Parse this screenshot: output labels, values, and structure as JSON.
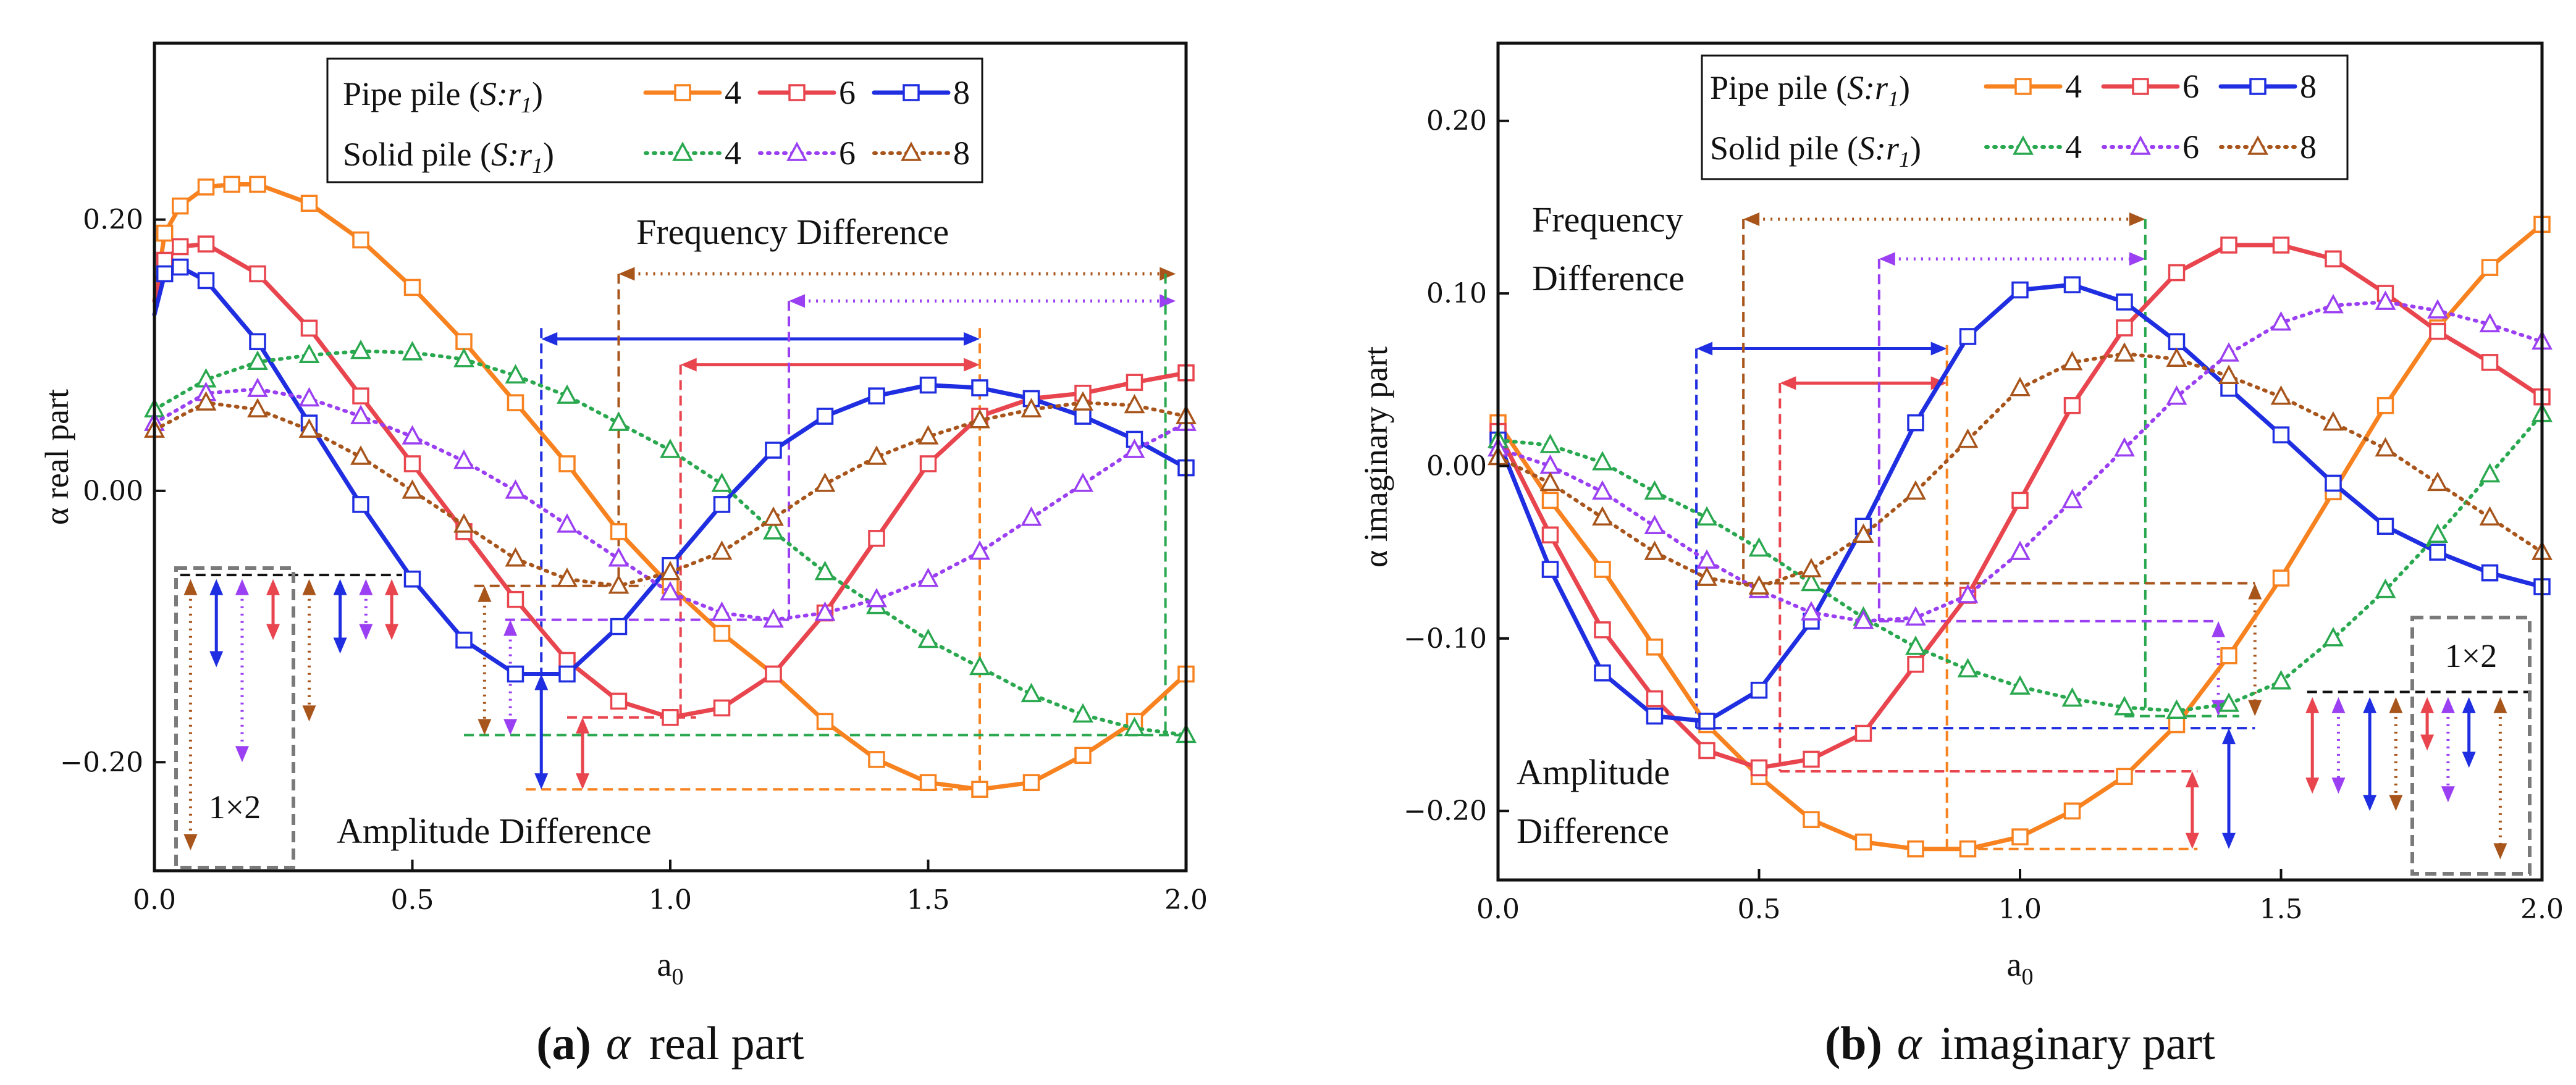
{
  "colors": {
    "pipe4": "#f7821f",
    "pipe6": "#e8454e",
    "pipe8": "#1f2ee0",
    "solid4": "#2aa84f",
    "solid6": "#9b3ff2",
    "solid8": "#a8551c",
    "inset_box": "#7a7a7a"
  },
  "chart_data": [
    {
      "type": "line",
      "panel": "a",
      "caption_letter": "(a)",
      "caption_symbol": "α",
      "caption_text": "real part",
      "xlabel": "a",
      "xlabel_sub": "0",
      "ylabel": "α real part",
      "xlim": [
        0,
        2.0
      ],
      "ylim": [
        -0.28,
        0.33
      ],
      "xticks": [
        0.0,
        0.5,
        1.0,
        1.5,
        2.0
      ],
      "xtick_labels": [
        "0.0",
        "0.5",
        "1.0",
        "1.5",
        "2.0"
      ],
      "yticks": [
        -0.2,
        0.0,
        0.2
      ],
      "ytick_labels": [
        "−0.20",
        "0.00",
        "0.20"
      ],
      "legend": {
        "row1_label": "Pipe  pile (",
        "row2_label": "Solid pile (",
        "ratio_symbol": "S:r",
        "ratio_sub": "1",
        "close": ")",
        "entries": [
          "4",
          "6",
          "8"
        ]
      },
      "annotations": {
        "frequency": "Frequency Difference",
        "amplitude": "Amplitude Difference",
        "inset": "1×2"
      },
      "series": [
        {
          "name": "Pipe pile 4",
          "key": "pipe4",
          "style": "solid",
          "marker": "square",
          "x": [
            0,
            0.02,
            0.05,
            0.1,
            0.15,
            0.2,
            0.3,
            0.4,
            0.5,
            0.6,
            0.7,
            0.8,
            0.9,
            1.0,
            1.1,
            1.2,
            1.3,
            1.4,
            1.5,
            1.6,
            1.7,
            1.8,
            1.9,
            2.0
          ],
          "y": [
            0.14,
            0.19,
            0.21,
            0.224,
            0.226,
            0.226,
            0.212,
            0.185,
            0.15,
            0.11,
            0.065,
            0.02,
            -0.03,
            -0.07,
            -0.105,
            -0.135,
            -0.17,
            -0.198,
            -0.215,
            -0.22,
            -0.215,
            -0.195,
            -0.17,
            -0.135
          ]
        },
        {
          "name": "Pipe pile 6",
          "key": "pipe6",
          "style": "solid",
          "marker": "square",
          "x": [
            0,
            0.02,
            0.05,
            0.1,
            0.2,
            0.3,
            0.4,
            0.5,
            0.6,
            0.7,
            0.8,
            0.9,
            1.0,
            1.1,
            1.2,
            1.3,
            1.4,
            1.5,
            1.6,
            1.7,
            1.8,
            1.9,
            2.0
          ],
          "y": [
            0.14,
            0.17,
            0.18,
            0.182,
            0.16,
            0.12,
            0.07,
            0.02,
            -0.03,
            -0.08,
            -0.125,
            -0.155,
            -0.167,
            -0.16,
            -0.135,
            -0.09,
            -0.035,
            0.02,
            0.055,
            0.068,
            0.072,
            0.08,
            0.087
          ]
        },
        {
          "name": "Pipe pile 8",
          "key": "pipe8",
          "style": "solid",
          "marker": "square",
          "x": [
            0,
            0.02,
            0.05,
            0.1,
            0.2,
            0.3,
            0.4,
            0.5,
            0.6,
            0.7,
            0.8,
            0.9,
            1.0,
            1.1,
            1.2,
            1.3,
            1.4,
            1.5,
            1.6,
            1.7,
            1.8,
            1.9,
            2.0
          ],
          "y": [
            0.13,
            0.16,
            0.165,
            0.155,
            0.11,
            0.05,
            -0.01,
            -0.065,
            -0.11,
            -0.135,
            -0.135,
            -0.1,
            -0.055,
            -0.01,
            0.03,
            0.055,
            0.07,
            0.078,
            0.076,
            0.068,
            0.055,
            0.038,
            0.017
          ]
        },
        {
          "name": "Solid pile 4",
          "key": "solid4",
          "style": "dotted",
          "marker": "triangle",
          "x": [
            0,
            0.1,
            0.2,
            0.3,
            0.4,
            0.5,
            0.6,
            0.7,
            0.8,
            0.9,
            1.0,
            1.1,
            1.2,
            1.3,
            1.4,
            1.5,
            1.6,
            1.7,
            1.8,
            1.9,
            2.0
          ],
          "y": [
            0.06,
            0.082,
            0.095,
            0.1,
            0.103,
            0.102,
            0.097,
            0.085,
            0.07,
            0.05,
            0.03,
            0.005,
            -0.03,
            -0.06,
            -0.085,
            -0.11,
            -0.13,
            -0.15,
            -0.165,
            -0.175,
            -0.18
          ]
        },
        {
          "name": "Solid pile 6",
          "key": "solid6",
          "style": "dotted",
          "marker": "triangle",
          "x": [
            0,
            0.1,
            0.2,
            0.3,
            0.4,
            0.5,
            0.6,
            0.7,
            0.8,
            0.9,
            1.0,
            1.1,
            1.2,
            1.3,
            1.4,
            1.5,
            1.6,
            1.7,
            1.8,
            1.9,
            2.0
          ],
          "y": [
            0.05,
            0.072,
            0.075,
            0.068,
            0.055,
            0.04,
            0.022,
            0.0,
            -0.025,
            -0.05,
            -0.075,
            -0.09,
            -0.095,
            -0.09,
            -0.08,
            -0.065,
            -0.045,
            -0.02,
            0.005,
            0.03,
            0.05
          ]
        },
        {
          "name": "Solid pile 8",
          "key": "solid8",
          "style": "dotted",
          "marker": "triangle",
          "x": [
            0,
            0.1,
            0.2,
            0.3,
            0.4,
            0.5,
            0.6,
            0.7,
            0.8,
            0.9,
            1.0,
            1.1,
            1.2,
            1.3,
            1.4,
            1.5,
            1.6,
            1.7,
            1.8,
            1.9,
            2.0
          ],
          "y": [
            0.045,
            0.065,
            0.06,
            0.045,
            0.025,
            0.0,
            -0.025,
            -0.05,
            -0.065,
            -0.07,
            -0.06,
            -0.045,
            -0.02,
            0.005,
            0.025,
            0.04,
            0.052,
            0.06,
            0.065,
            0.063,
            0.055
          ]
        }
      ]
    },
    {
      "type": "line",
      "panel": "b",
      "caption_letter": "(b)",
      "caption_symbol": "α",
      "caption_text": "imaginary part",
      "xlabel": "a",
      "xlabel_sub": "0",
      "ylabel": "α imaginary part",
      "xlim": [
        0,
        2.0
      ],
      "ylim": [
        -0.24,
        0.245
      ],
      "xticks": [
        0.0,
        0.5,
        1.0,
        1.5,
        2.0
      ],
      "xtick_labels": [
        "0.0",
        "0.5",
        "1.0",
        "1.5",
        "2.0"
      ],
      "yticks": [
        -0.2,
        -0.1,
        0.0,
        0.1,
        0.2
      ],
      "ytick_labels": [
        "−0.20",
        "−0.10",
        "0.00",
        "0.10",
        "0.20"
      ],
      "legend": {
        "row1_label": "Pipe  pile (",
        "row2_label": "Solid pile (",
        "ratio_symbol": "S:r",
        "ratio_sub": "1",
        "close": ")",
        "entries": [
          "4",
          "6",
          "8"
        ]
      },
      "annotations": {
        "frequency_1": "Frequency",
        "frequency_2": "Difference",
        "amplitude_1": "Amplitude",
        "amplitude_2": "Difference",
        "inset": "1×2"
      },
      "series": [
        {
          "name": "Pipe pile 4",
          "key": "pipe4",
          "style": "solid",
          "marker": "square",
          "x": [
            0,
            0.1,
            0.2,
            0.3,
            0.4,
            0.5,
            0.6,
            0.7,
            0.8,
            0.9,
            1.0,
            1.1,
            1.2,
            1.3,
            1.4,
            1.5,
            1.6,
            1.7,
            1.8,
            1.9,
            2.0
          ],
          "y": [
            0.025,
            -0.02,
            -0.06,
            -0.105,
            -0.15,
            -0.18,
            -0.205,
            -0.218,
            -0.222,
            -0.222,
            -0.215,
            -0.2,
            -0.18,
            -0.15,
            -0.11,
            -0.065,
            -0.015,
            0.035,
            0.08,
            0.115,
            0.14
          ]
        },
        {
          "name": "Pipe pile 6",
          "key": "pipe6",
          "style": "solid",
          "marker": "square",
          "x": [
            0,
            0.1,
            0.2,
            0.3,
            0.4,
            0.5,
            0.6,
            0.7,
            0.8,
            0.9,
            1.0,
            1.1,
            1.2,
            1.3,
            1.4,
            1.5,
            1.6,
            1.7,
            1.8,
            1.9,
            2.0
          ],
          "y": [
            0.02,
            -0.04,
            -0.095,
            -0.135,
            -0.165,
            -0.175,
            -0.17,
            -0.155,
            -0.115,
            -0.075,
            -0.02,
            0.035,
            0.08,
            0.112,
            0.128,
            0.128,
            0.12,
            0.1,
            0.078,
            0.06,
            0.04
          ]
        },
        {
          "name": "Pipe pile 8",
          "key": "pipe8",
          "style": "solid",
          "marker": "square",
          "x": [
            0,
            0.1,
            0.2,
            0.3,
            0.4,
            0.5,
            0.6,
            0.7,
            0.8,
            0.9,
            1.0,
            1.1,
            1.2,
            1.3,
            1.4,
            1.5,
            1.6,
            1.7,
            1.8,
            1.9,
            2.0
          ],
          "y": [
            0.015,
            -0.06,
            -0.12,
            -0.145,
            -0.148,
            -0.13,
            -0.09,
            -0.035,
            0.025,
            0.075,
            0.102,
            0.105,
            0.095,
            0.072,
            0.045,
            0.018,
            -0.01,
            -0.035,
            -0.05,
            -0.062,
            -0.07
          ]
        },
        {
          "name": "Solid pile 4",
          "key": "solid4",
          "style": "dotted",
          "marker": "triangle",
          "x": [
            0,
            0.1,
            0.2,
            0.3,
            0.4,
            0.5,
            0.6,
            0.7,
            0.8,
            0.9,
            1.0,
            1.1,
            1.2,
            1.3,
            1.4,
            1.5,
            1.6,
            1.7,
            1.8,
            1.9,
            2.0
          ],
          "y": [
            0.015,
            0.012,
            0.002,
            -0.015,
            -0.03,
            -0.048,
            -0.068,
            -0.088,
            -0.105,
            -0.118,
            -0.128,
            -0.135,
            -0.14,
            -0.142,
            -0.138,
            -0.125,
            -0.1,
            -0.072,
            -0.04,
            -0.005,
            0.03
          ]
        },
        {
          "name": "Solid pile 6",
          "key": "solid6",
          "style": "dotted",
          "marker": "triangle",
          "x": [
            0,
            0.1,
            0.2,
            0.3,
            0.4,
            0.5,
            0.6,
            0.7,
            0.8,
            0.9,
            1.0,
            1.1,
            1.2,
            1.3,
            1.4,
            1.5,
            1.6,
            1.7,
            1.8,
            1.9,
            2.0
          ],
          "y": [
            0.01,
            0.0,
            -0.015,
            -0.035,
            -0.055,
            -0.072,
            -0.085,
            -0.09,
            -0.088,
            -0.075,
            -0.05,
            -0.02,
            0.01,
            0.04,
            0.065,
            0.083,
            0.093,
            0.095,
            0.09,
            0.082,
            0.072
          ]
        },
        {
          "name": "Solid pile 8",
          "key": "solid8",
          "style": "dotted",
          "marker": "triangle",
          "x": [
            0,
            0.1,
            0.2,
            0.3,
            0.4,
            0.5,
            0.6,
            0.7,
            0.8,
            0.9,
            1.0,
            1.1,
            1.2,
            1.3,
            1.4,
            1.5,
            1.6,
            1.7,
            1.8,
            1.9,
            2.0
          ],
          "y": [
            0.005,
            -0.01,
            -0.03,
            -0.05,
            -0.065,
            -0.07,
            -0.06,
            -0.04,
            -0.015,
            0.015,
            0.045,
            0.06,
            0.065,
            0.062,
            0.052,
            0.04,
            0.025,
            0.01,
            -0.01,
            -0.03,
            -0.05
          ]
        }
      ]
    }
  ]
}
